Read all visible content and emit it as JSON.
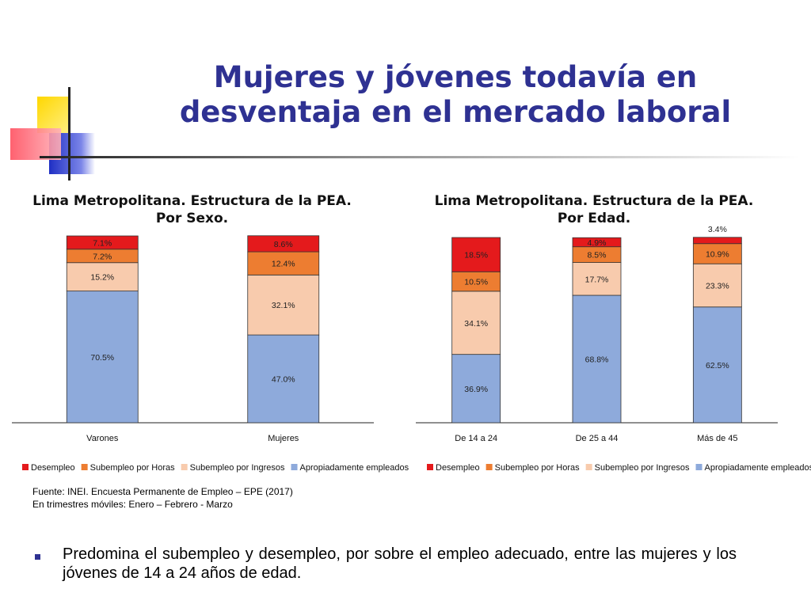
{
  "slide": {
    "title_line1": "Mujeres y jóvenes todavía en",
    "title_line2": "desventaja en el mercado laboral",
    "source_line1": "Fuente: INEI. Encuesta Permanente de Empleo – EPE (2017)",
    "source_line2": "En trimestres móviles: Enero – Febrero - Marzo",
    "bullet": "Predomina el subempleo y desempleo, por sobre el empleo adecuado, entre las mujeres y los jóvenes de 14 a 24 años de edad."
  },
  "colors": {
    "Apropiadamente empleados": "#8eaadb",
    "Subempleo por Ingresos": "#f8cbad",
    "Subempleo por Horas": "#ed7d31",
    "Desempleo": "#e41a1c",
    "title": "#2e3192"
  },
  "chart_data": [
    {
      "type": "bar",
      "stacked": true,
      "title_line1": "Lima Metropolitana. Estructura de la PEA.",
      "title_line2": "Por Sexo.",
      "categories": [
        "Varones",
        "Mujeres"
      ],
      "series": [
        {
          "name": "Apropiadamente empleados",
          "values": [
            70.5,
            47.0
          ],
          "labels": [
            "70.5%",
            "47.0%"
          ]
        },
        {
          "name": "Subempleo por Ingresos",
          "values": [
            15.2,
            32.1
          ],
          "labels": [
            "15.2%",
            "32.1%"
          ]
        },
        {
          "name": "Subempleo por Horas",
          "values": [
            7.2,
            12.4
          ],
          "labels": [
            "7.2%",
            "12.4%"
          ]
        },
        {
          "name": "Desempleo",
          "values": [
            7.1,
            8.6
          ],
          "labels": [
            "7.1%",
            "8.6%"
          ]
        }
      ],
      "legend_order": [
        "Desempleo",
        "Subempleo por Horas",
        "Subempleo por Ingresos",
        "Apropiadamente empleados"
      ],
      "legend_position": "bottom",
      "ylim": [
        0,
        100
      ]
    },
    {
      "type": "bar",
      "stacked": true,
      "title_line1": "Lima Metropolitana. Estructura de la PEA.",
      "title_line2": "Por Edad.",
      "categories": [
        "De 14 a 24",
        "De 25 a 44",
        "Más de 45"
      ],
      "series": [
        {
          "name": "Apropiadamente empleados",
          "values": [
            36.9,
            68.8,
            62.5
          ],
          "labels": [
            "36.9%",
            "68.8%",
            "62.5%"
          ]
        },
        {
          "name": "Subempleo por Ingresos",
          "values": [
            34.1,
            17.7,
            23.3
          ],
          "labels": [
            "34.1%",
            "17.7%",
            "23.3%"
          ]
        },
        {
          "name": "Subempleo por Horas",
          "values": [
            10.5,
            8.5,
            10.9
          ],
          "labels": [
            "10.5%",
            "8.5%",
            "10.9%"
          ]
        },
        {
          "name": "Desempleo",
          "values": [
            18.5,
            4.9,
            3.4
          ],
          "labels": [
            "18.5%",
            "4.9%",
            "3.4%"
          ]
        }
      ],
      "legend_order": [
        "Desempleo",
        "Subempleo por Horas",
        "Subempleo por Ingresos",
        "Apropiadamente empleados"
      ],
      "legend_position": "bottom",
      "ylim": [
        0,
        100
      ]
    }
  ]
}
